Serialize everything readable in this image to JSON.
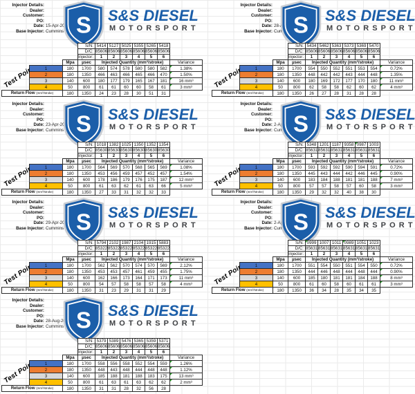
{
  "colors": {
    "logo_blue": "#1b5ea9",
    "wordmark_gray": "#3f4144",
    "tp1": "#4472c4",
    "tp2": "#ed7d31",
    "tp3": "#d9d9d9",
    "tp4": "#ffc000",
    "flag_green": "#2da12d",
    "grid_line": "#eaeaea",
    "cell_border": "#2b2b2b"
  },
  "logo": {
    "brand_top": "S&S DIESEL",
    "brand_bottom": "MOTORSPORT",
    "monogram": "S"
  },
  "card_labels": {
    "details_title": "Injector Details:",
    "dealer": "Dealer:",
    "customer": "Customer:",
    "po": "PO:",
    "date": "Date:",
    "base_injector": "Base Injector:",
    "base_injector_value": "Cummins 6.7 350%",
    "sn": "S/N:",
    "dc": "D/C:",
    "injector": "Injector:",
    "mpa": "Mpa",
    "usec": "µsec",
    "injected_quantity": "Injected Quantity (mm³/stroke)",
    "variance": "Variance",
    "test_point": "Test Point",
    "return_flow": "Return Flow",
    "return_flow_unit": "(mm³/stroke)",
    "injector_numbers": [
      "1",
      "2",
      "3",
      "4",
      "5",
      "6"
    ]
  },
  "cards": [
    {
      "date": "15-Apr-2019",
      "sn": [
        "5414",
        "5127",
        "5025",
        "5355",
        "5265",
        "5418"
      ],
      "dc": [
        "85606",
        "85606",
        "85606",
        "85606",
        "85606",
        "85606"
      ],
      "rows": [
        {
          "tp": "1",
          "mpa": "180",
          "usec": "1700",
          "values": [
            "580",
            "574",
            "578",
            "580",
            "580",
            "582"
          ],
          "variance": "1.38%"
        },
        {
          "tp": "2",
          "mpa": "180",
          "usec": "1350",
          "values": [
            "466",
            "463",
            "466",
            "465",
            "466",
            "470"
          ],
          "variance": "1.50%"
        },
        {
          "tp": "3",
          "mpa": "140",
          "usec": "600",
          "values": [
            "180",
            "177",
            "179",
            "165",
            "167",
            "181"
          ],
          "variance": "16 mm³"
        },
        {
          "tp": "4",
          "mpa": "50",
          "usec": "800",
          "values": [
            "61",
            "61",
            "60",
            "60",
            "58",
            "61"
          ],
          "variance": "3 mm³"
        }
      ],
      "return_flow": {
        "mpa": "180",
        "usec": "1350",
        "values": [
          "24",
          "23",
          "28",
          "30",
          "51",
          "31"
        ]
      }
    },
    {
      "date": "28-Aug-2019",
      "sn": [
        "5434",
        "5462",
        "5363",
        "5373",
        "5369",
        "5470"
      ],
      "dc": [
        "85606",
        "85606",
        "85606",
        "85606",
        "85606",
        "85606"
      ],
      "rows": [
        {
          "tp": "1",
          "mpa": "180",
          "usec": "1700",
          "values": [
            "554",
            "550",
            "552",
            "551",
            "553",
            "554"
          ],
          "variance": "0.72%"
        },
        {
          "tp": "2",
          "mpa": "180",
          "usec": "1350",
          "values": [
            "448",
            "442",
            "442",
            "443",
            "444",
            "448"
          ],
          "variance": "1.35%"
        },
        {
          "tp": "3",
          "mpa": "140",
          "usec": "600",
          "values": [
            "180",
            "169",
            "172",
            "177",
            "170",
            "180"
          ],
          "variance": "11 mm³"
        },
        {
          "tp": "4",
          "mpa": "50",
          "usec": "800",
          "values": [
            "62",
            "58",
            "58",
            "62",
            "60",
            "62"
          ],
          "variance": "4 mm³"
        }
      ],
      "return_flow": {
        "mpa": "180",
        "usec": "1350",
        "values": [
          "26",
          "27",
          "28",
          "31",
          "28",
          "28"
        ]
      }
    },
    {
      "date": "23-Apr-2019",
      "sn": [
        "1018",
        "1382",
        "1025",
        "1350",
        "1352",
        "1354"
      ],
      "dc": [
        "85630",
        "85630",
        "85630",
        "85630",
        "85630",
        "85630"
      ],
      "rows": [
        {
          "tp": "1",
          "mpa": "180",
          "usec": "1700",
          "values": [
            "564",
            "569",
            "570",
            "568",
            "565",
            "569"
          ],
          "variance": "1.08%"
        },
        {
          "tp": "2",
          "mpa": "180",
          "usec": "1350",
          "values": [
            "453",
            "456",
            "459",
            "457",
            "452",
            "457"
          ],
          "variance": "1.54%"
        },
        {
          "tp": "3",
          "mpa": "140",
          "usec": "600",
          "values": [
            "178",
            "186",
            "179",
            "176",
            "175",
            "187"
          ],
          "variance": "12 mm³"
        },
        {
          "tp": "4",
          "mpa": "50",
          "usec": "800",
          "values": [
            "61",
            "63",
            "62",
            "61",
            "63",
            "66"
          ],
          "variance": "5 mm³"
        }
      ],
      "return_flow": {
        "mpa": "180",
        "usec": "1350",
        "values": [
          "27",
          "33",
          "31",
          "32",
          "32",
          "33"
        ]
      }
    },
    {
      "date": "2-Apr-2019",
      "sn": [
        "5348",
        "1201",
        "1187",
        "9358",
        "0987",
        "1003"
      ],
      "dc": [
        "85631",
        "85631",
        "85631",
        "85631",
        "85631",
        "85631"
      ],
      "rows": [
        {
          "tp": "1",
          "mpa": "180",
          "usec": "1700",
          "values": [
            "593",
            "592",
            "592",
            "590",
            "594",
            "591"
          ],
          "variance": "0.72%"
        },
        {
          "tp": "2",
          "mpa": "180",
          "usec": "1350",
          "values": [
            "445",
            "443",
            "444",
            "442",
            "446",
            "445"
          ],
          "variance": "0.90%"
        },
        {
          "tp": "3",
          "mpa": "140",
          "usec": "600",
          "values": [
            "183",
            "184",
            "188",
            "181",
            "181",
            "188"
          ],
          "variance": "7 mm³"
        },
        {
          "tp": "4",
          "mpa": "50",
          "usec": "800",
          "values": [
            "57",
            "57",
            "58",
            "57",
            "60",
            "58"
          ],
          "variance": "3 mm³"
        }
      ],
      "return_flow": {
        "mpa": "180",
        "usec": "1350",
        "values": [
          "29",
          "32",
          "32",
          "40",
          "38",
          "30"
        ]
      }
    },
    {
      "date": "29-Apr-2019",
      "sn": [
        "5794",
        "2102",
        "1987",
        "2104",
        "1915",
        "5883"
      ],
      "dc": [
        "85322",
        "85322",
        "85322",
        "85322",
        "85322",
        "85322"
      ],
      "rows": [
        {
          "tp": "1",
          "mpa": "180",
          "usec": "1700",
          "values": [
            "562",
            "562",
            "570",
            "574",
            "570",
            "569"
          ],
          "variance": "2.12%"
        },
        {
          "tp": "2",
          "mpa": "180",
          "usec": "1350",
          "values": [
            "453",
            "453",
            "457",
            "461",
            "459",
            "455"
          ],
          "variance": "1.75%"
        },
        {
          "tp": "3",
          "mpa": "140",
          "usec": "600",
          "values": [
            "162",
            "166",
            "173",
            "164",
            "171",
            "173"
          ],
          "variance": "11 mm³"
        },
        {
          "tp": "4",
          "mpa": "50",
          "usec": "800",
          "values": [
            "54",
            "57",
            "58",
            "58",
            "57",
            "58"
          ],
          "variance": "4 mm³"
        }
      ],
      "return_flow": {
        "mpa": "180",
        "usec": "1350",
        "values": [
          "31",
          "23",
          "29",
          "31",
          "31",
          "29"
        ]
      }
    },
    {
      "date": "2-Apr-2019",
      "sn": [
        "0999",
        "1007",
        "1011",
        "0989",
        "1051",
        "1023"
      ],
      "dc": [
        "85631",
        "85631",
        "85631",
        "85631",
        "85631",
        "85631"
      ],
      "rows": [
        {
          "tp": "1",
          "mpa": "180",
          "usec": "1700",
          "values": [
            "551",
            "554",
            "550",
            "551",
            "554",
            "550"
          ],
          "variance": "0.72%"
        },
        {
          "tp": "2",
          "mpa": "180",
          "usec": "1350",
          "values": [
            "444",
            "446",
            "448",
            "444",
            "448",
            "444"
          ],
          "variance": "0.90%"
        },
        {
          "tp": "3",
          "mpa": "140",
          "usec": "600",
          "values": [
            "185",
            "180",
            "181",
            "181",
            "184",
            "188"
          ],
          "variance": "8 mm³"
        },
        {
          "tp": "4",
          "mpa": "50",
          "usec": "800",
          "values": [
            "61",
            "60",
            "58",
            "60",
            "61",
            "61"
          ],
          "variance": "3 mm³"
        }
      ],
      "return_flow": {
        "mpa": "180",
        "usec": "1350",
        "values": [
          "36",
          "34",
          "28",
          "35",
          "34",
          "35"
        ]
      }
    },
    {
      "date": "28-Aug-2019",
      "sn": [
        "5379",
        "5389",
        "5476",
        "5365",
        "5359",
        "5371"
      ],
      "dc": [
        "85606",
        "85606",
        "85606",
        "85606",
        "85606",
        "85606"
      ],
      "rows": [
        {
          "tp": "1",
          "mpa": "180",
          "usec": "1700",
          "values": [
            "558",
            "556",
            "558",
            "552",
            "554",
            "559"
          ],
          "variance": "1.26%"
        },
        {
          "tp": "2",
          "mpa": "180",
          "usec": "1350",
          "values": [
            "448",
            "443",
            "448",
            "444",
            "448",
            "448"
          ],
          "variance": "1.12%"
        },
        {
          "tp": "3",
          "mpa": "140",
          "usec": "600",
          "values": [
            "185",
            "188",
            "181",
            "188",
            "183",
            "175"
          ],
          "variance": "13 mm³"
        },
        {
          "tp": "4",
          "mpa": "50",
          "usec": "800",
          "values": [
            "61",
            "63",
            "61",
            "63",
            "62",
            "62"
          ],
          "variance": "2 mm³"
        }
      ],
      "return_flow": {
        "mpa": "180",
        "usec": "1350",
        "values": [
          "31",
          "31",
          "28",
          "32",
          "56",
          "28"
        ]
      }
    }
  ]
}
